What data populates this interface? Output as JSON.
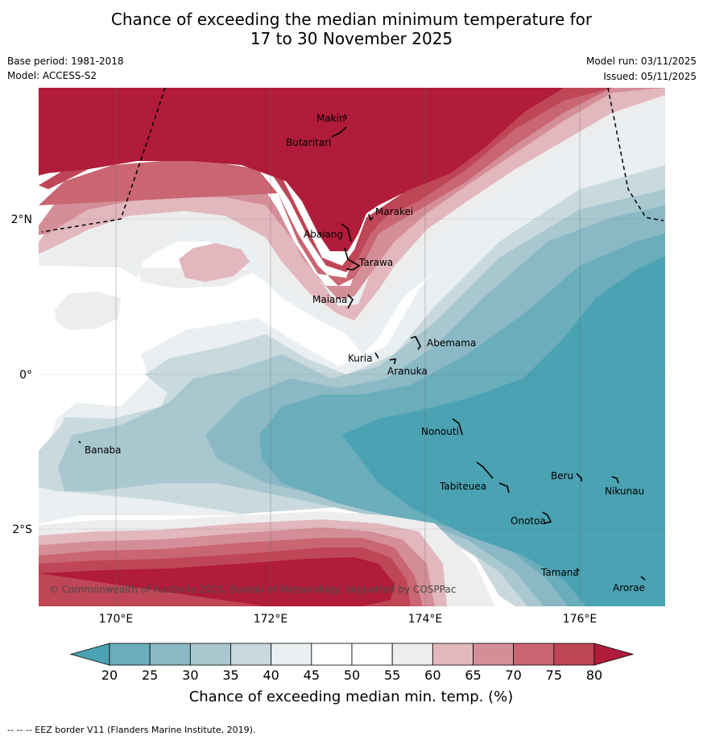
{
  "title_line1": "Chance of exceeding the median minimum temperature for",
  "title_line2": "17 to 30 November 2025",
  "base_period": "Base period: 1981-2018",
  "model": "Model: ACCESS-S2",
  "model_run": "Model run: 03/11/2025",
  "issued": "Issued: 05/11/2025",
  "map": {
    "lon_ticks": [
      "170°E",
      "172°E",
      "174°E",
      "176°E"
    ],
    "lat_ticks": [
      "2°N",
      "0°",
      "2°S"
    ],
    "islands": [
      "Makin",
      "Butaritari",
      "Marakei",
      "Abaiang",
      "Tarawa",
      "Maiana",
      "Abemama",
      "Kuria",
      "Aranuka",
      "Nonouti",
      "Banaba",
      "Beru",
      "Nikunau",
      "Tabiteuea",
      "Onotoa",
      "Tamana",
      "Arorae"
    ],
    "copyright": "© Commonwealth of Australia 2025, Bureau of Meteorology, supported by COSPPac"
  },
  "colorbar": {
    "ticks": [
      "20",
      "25",
      "30",
      "35",
      "40",
      "45",
      "50",
      "55",
      "60",
      "65",
      "70",
      "75",
      "80"
    ],
    "colors": [
      "#6aadbb",
      "#8ab8c5",
      "#a8c7ce",
      "#c9d9de",
      "#eaeff1",
      "#ffffff",
      "#ffffff",
      "#ededee",
      "#e2b7bd",
      "#d48e97",
      "#c96672",
      "#bf4656"
    ],
    "under_color": "#4aa2b2",
    "over_color": "#b01c3a",
    "label": "Chance of exceeding median min. temp. (%)"
  },
  "footer": "--  --  -- EEZ border V11 (Flanders Marine Institute, 2019)."
}
